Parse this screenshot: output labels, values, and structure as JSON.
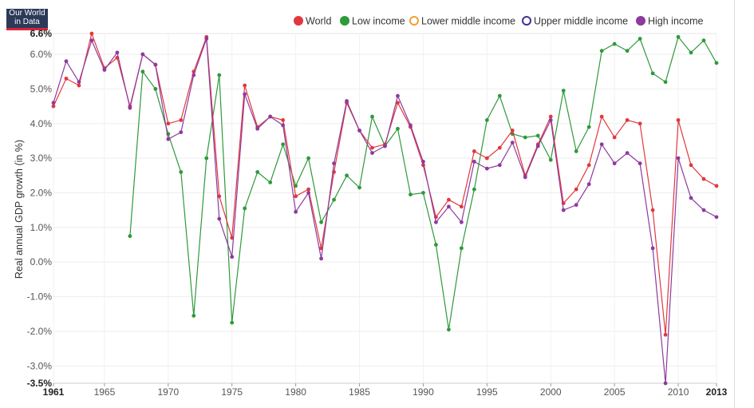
{
  "logo": {
    "line1": "Our World",
    "line2": "in Data"
  },
  "chart_data": {
    "type": "line",
    "ylabel": "Real annual GDP growth (in %)",
    "xlim": [
      1961,
      2013
    ],
    "ylim": [
      -3.5,
      6.6
    ],
    "x_ticks": [
      1961,
      1965,
      1970,
      1975,
      1980,
      1985,
      1990,
      1995,
      2000,
      2005,
      2010,
      2013
    ],
    "x_ticks_bold": [
      1961,
      2013
    ],
    "y_ticks": [
      {
        "value": 6.6,
        "label": "6.6%",
        "bold": true
      },
      {
        "value": 6.0,
        "label": "6.0%"
      },
      {
        "value": 5.0,
        "label": "5.0%"
      },
      {
        "value": 4.0,
        "label": "4.0%"
      },
      {
        "value": 3.0,
        "label": "3.0%"
      },
      {
        "value": 2.0,
        "label": "2.0%"
      },
      {
        "value": 1.0,
        "label": "1.0%"
      },
      {
        "value": 0.0,
        "label": "0.0%"
      },
      {
        "value": -1.0,
        "label": "-1.0%"
      },
      {
        "value": -2.0,
        "label": "-2.0%"
      },
      {
        "value": -3.0,
        "label": "-3.0%"
      },
      {
        "value": -3.5,
        "label": "-3.5%",
        "bold": true
      }
    ],
    "grid": true,
    "legend_position": "top-right",
    "legend": [
      {
        "name": "World",
        "color": "#e0383e",
        "filled": true
      },
      {
        "name": "Low income",
        "color": "#2e9a3a",
        "filled": true
      },
      {
        "name": "Lower middle income",
        "color": "#f0a030",
        "filled": false
      },
      {
        "name": "Upper middle income",
        "color": "#3b3494",
        "filled": false
      },
      {
        "name": "High income",
        "color": "#8e3a9e",
        "filled": true
      }
    ],
    "x": [
      1961,
      1962,
      1963,
      1964,
      1965,
      1966,
      1967,
      1968,
      1969,
      1970,
      1971,
      1972,
      1973,
      1974,
      1975,
      1976,
      1977,
      1978,
      1979,
      1980,
      1981,
      1982,
      1983,
      1984,
      1985,
      1986,
      1987,
      1988,
      1989,
      1990,
      1991,
      1992,
      1993,
      1994,
      1995,
      1996,
      1997,
      1998,
      1999,
      2000,
      2001,
      2002,
      2003,
      2004,
      2005,
      2006,
      2007,
      2008,
      2009,
      2010,
      2011,
      2012,
      2013
    ],
    "series": [
      {
        "name": "World",
        "color": "#e0383e",
        "values": [
          4.5,
          5.3,
          5.1,
          6.6,
          5.6,
          5.9,
          4.5,
          6.0,
          5.7,
          4.0,
          4.1,
          5.5,
          6.5,
          1.9,
          0.7,
          5.1,
          3.9,
          4.2,
          4.1,
          1.9,
          2.1,
          0.4,
          2.6,
          4.6,
          3.8,
          3.3,
          3.4,
          4.6,
          3.9,
          2.8,
          1.3,
          1.8,
          1.6,
          3.2,
          3.0,
          3.3,
          3.8,
          2.5,
          3.4,
          4.2,
          1.7,
          2.1,
          2.8,
          4.2,
          3.6,
          4.1,
          4.0,
          1.5,
          -2.1,
          4.1,
          2.8,
          2.4,
          2.2
        ]
      },
      {
        "name": "Low income",
        "color": "#2e9a3a",
        "values": [
          null,
          null,
          null,
          null,
          null,
          null,
          0.75,
          5.5,
          5.0,
          3.7,
          2.6,
          -1.55,
          3.0,
          5.4,
          -1.75,
          1.55,
          2.6,
          2.3,
          3.4,
          2.2,
          3.0,
          1.15,
          1.8,
          2.5,
          2.15,
          4.2,
          3.35,
          3.85,
          1.95,
          2.0,
          0.5,
          -1.95,
          0.4,
          2.1,
          4.1,
          4.8,
          3.7,
          3.6,
          3.65,
          2.95,
          4.95,
          3.2,
          3.9,
          6.1,
          6.3,
          6.1,
          6.45,
          5.45,
          5.2,
          6.5,
          6.05,
          6.4,
          5.75
        ]
      },
      {
        "name": "High income",
        "color": "#8e3a9e",
        "values": [
          4.6,
          5.8,
          5.2,
          6.4,
          5.55,
          6.05,
          4.45,
          6.0,
          5.7,
          3.55,
          3.75,
          5.4,
          6.45,
          1.25,
          0.15,
          4.85,
          3.85,
          4.2,
          3.95,
          1.45,
          2.0,
          0.1,
          2.85,
          4.65,
          3.8,
          3.15,
          3.35,
          4.8,
          3.95,
          2.9,
          1.15,
          1.6,
          1.15,
          2.9,
          2.7,
          2.8,
          3.45,
          2.45,
          3.35,
          4.1,
          1.5,
          1.65,
          2.25,
          3.4,
          2.85,
          3.15,
          2.85,
          0.4,
          -3.5,
          3.0,
          1.85,
          1.5,
          1.3
        ]
      }
    ]
  }
}
